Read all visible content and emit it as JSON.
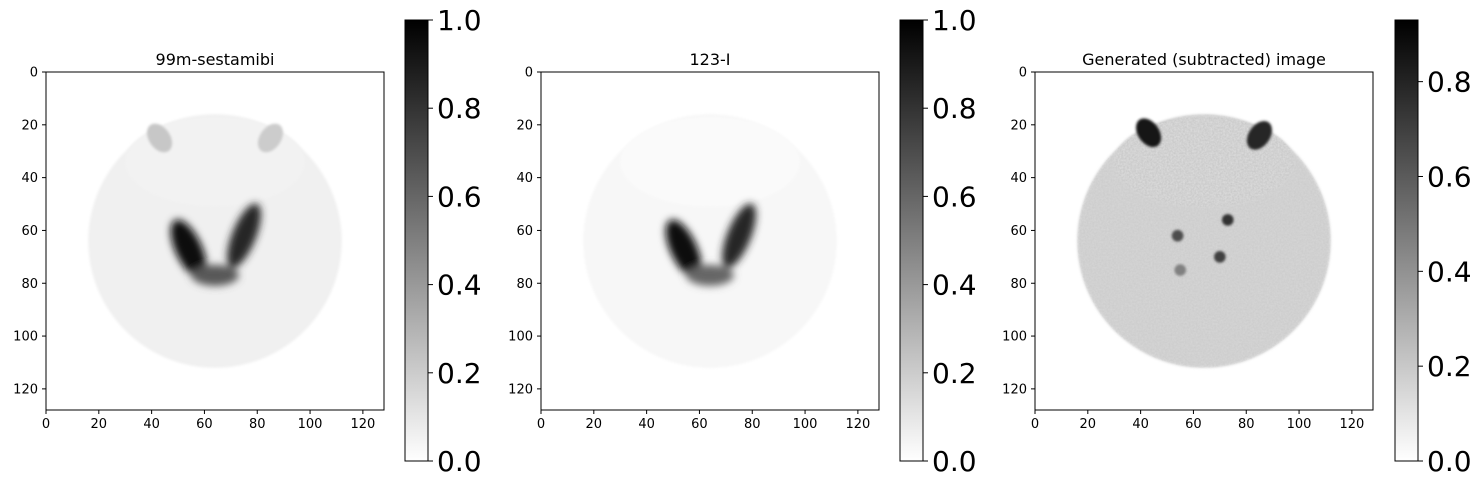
{
  "chart_data": [
    {
      "type": "heatmap",
      "title": "99m-sestamibi",
      "xlim": [
        0,
        128
      ],
      "ylim": [
        128,
        0
      ],
      "xticks": [
        "0",
        "20",
        "40",
        "60",
        "80",
        "100",
        "120"
      ],
      "yticks": [
        "0",
        "20",
        "40",
        "60",
        "80",
        "100",
        "120"
      ],
      "colormap": "gray_r",
      "colorbar": {
        "range": [
          0.0,
          1.0
        ],
        "ticks": [
          "0.0",
          "0.2",
          "0.4",
          "0.6",
          "0.8",
          "1.0"
        ]
      },
      "features": {
        "body_disc": {
          "cx": 64,
          "cy": 64,
          "r": 48,
          "level": 0.06
        },
        "upper_arc": {
          "cy": 20,
          "level": 0.05
        },
        "upper_spots": [
          {
            "x": 43,
            "y": 25,
            "level": 0.22
          },
          {
            "x": 85,
            "y": 25,
            "level": 0.2
          }
        ],
        "lobes": [
          {
            "x": 54,
            "y": 67,
            "level": 0.95
          },
          {
            "x": 75,
            "y": 62,
            "level": 0.85
          }
        ],
        "isthmus": {
          "x": 64,
          "y": 77,
          "level": 0.65
        }
      }
    },
    {
      "type": "heatmap",
      "title": "123-I",
      "xlim": [
        0,
        128
      ],
      "ylim": [
        128,
        0
      ],
      "xticks": [
        "0",
        "20",
        "40",
        "60",
        "80",
        "100",
        "120"
      ],
      "yticks": [
        "0",
        "20",
        "40",
        "60",
        "80",
        "100",
        "120"
      ],
      "colormap": "gray_r",
      "colorbar": {
        "range": [
          0.0,
          1.0
        ],
        "ticks": [
          "0.0",
          "0.2",
          "0.4",
          "0.6",
          "0.8",
          "1.0"
        ]
      },
      "features": {
        "body_disc": {
          "cx": 64,
          "cy": 64,
          "r": 48,
          "level": 0.03
        },
        "upper_arc": {
          "cy": 20,
          "level": 0.02
        },
        "upper_spots": [],
        "lobes": [
          {
            "x": 54,
            "y": 67,
            "level": 0.95
          },
          {
            "x": 75,
            "y": 62,
            "level": 0.85
          }
        ],
        "isthmus": {
          "x": 64,
          "y": 77,
          "level": 0.6
        }
      }
    },
    {
      "type": "heatmap",
      "title": "Generated (subtracted) image",
      "xlim": [
        0,
        128
      ],
      "ylim": [
        128,
        0
      ],
      "xticks": [
        "0",
        "20",
        "40",
        "60",
        "80",
        "100",
        "120"
      ],
      "yticks": [
        "0",
        "20",
        "40",
        "60",
        "80",
        "100",
        "120"
      ],
      "colormap": "gray_r",
      "colorbar": {
        "range": [
          0.0,
          0.93
        ],
        "ticks": [
          "0.0",
          "0.2",
          "0.4",
          "0.6",
          "0.8"
        ]
      },
      "features": {
        "body_disc": {
          "cx": 64,
          "cy": 64,
          "r": 48,
          "level": 0.17
        },
        "upper_arc": {
          "cy": 20,
          "level": 0.15
        },
        "upper_spots": [
          {
            "x": 43,
            "y": 23,
            "level": 0.9
          },
          {
            "x": 85,
            "y": 24,
            "level": 0.85
          }
        ],
        "small_spots": [
          {
            "x": 54,
            "y": 62,
            "level": 0.7
          },
          {
            "x": 73,
            "y": 56,
            "level": 0.8
          },
          {
            "x": 55,
            "y": 75,
            "level": 0.5
          },
          {
            "x": 70,
            "y": 70,
            "level": 0.75
          }
        ]
      }
    }
  ]
}
